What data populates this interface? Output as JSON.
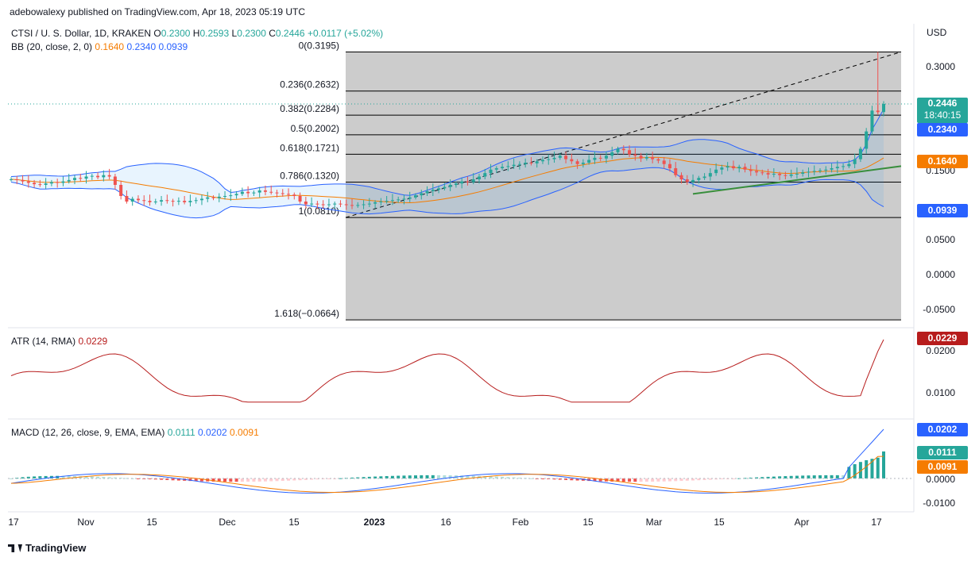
{
  "publisher_line": "adebowalexy published on TradingView.com, Apr 18, 2023 05:19 UTC",
  "footer_brand": "TradingView",
  "header": {
    "symbol": "CTSI / U. S. Dollar, 1D, KRAKEN",
    "o_label": "O",
    "o_value": "0.2300",
    "h_label": "H",
    "h_value": "0.2593",
    "l_label": "L",
    "l_value": "0.2300",
    "c_label": "C",
    "c_value": "0.2446",
    "change": "+0.0117 (+5.02%)",
    "bb_label": "BB (20, close, 2, 0)",
    "bb_basis": "0.1640",
    "bb_upper": "0.2340",
    "bb_lower": "0.0939"
  },
  "price_axis": {
    "currency": "USD",
    "ticks": [
      "0.3000",
      "0.1500",
      "0.0500",
      "0.0000",
      "-0.0500"
    ]
  },
  "price_tags": {
    "last": "0.2446",
    "countdown": "18:40:15",
    "bb_upper": "0.2340",
    "bb_basis": "0.1640",
    "bb_lower": "0.0939"
  },
  "fib_levels": [
    {
      "label": "0(0.3195)",
      "value": 0.3195
    },
    {
      "label": "0.236(0.2632)",
      "value": 0.2632
    },
    {
      "label": "0.382(0.2284)",
      "value": 0.2284
    },
    {
      "label": "0.5(0.2002)",
      "value": 0.2002
    },
    {
      "label": "0.618(0.1721)",
      "value": 0.1721
    },
    {
      "label": "0.786(0.1320)",
      "value": 0.132
    },
    {
      "label": "1(0.0810)",
      "value": 0.081
    },
    {
      "label": "1.618(−0.0664)",
      "value": -0.0664
    }
  ],
  "atr": {
    "label": "ATR (14, RMA)",
    "value": "0.0229",
    "ticks": [
      "0.0200",
      "0.0100"
    ]
  },
  "macd": {
    "label": "MACD (12, 26, close, 9, EMA, EMA)",
    "hist": "0.0111",
    "macd": "0.0202",
    "signal": "0.0091",
    "ticks": [
      "0.0000",
      "-0.0100"
    ]
  },
  "x_axis": [
    "17",
    "Nov",
    "15",
    "Dec",
    "15",
    "2023",
    "16",
    "Feb",
    "15",
    "Mar",
    "15",
    "Apr",
    "17"
  ],
  "colors": {
    "up": "#26a69a",
    "down": "#ef5350",
    "bb_band": "#2962ff",
    "bb_basis": "#f57c00",
    "atr": "#b71c1c",
    "macd": "#2962ff",
    "signal": "#f57c00",
    "fib_bg": "#cccccc",
    "trend": "#388e3c"
  },
  "chart_data": {
    "type": "candlestick",
    "symbol": "CTSI / U. S. Dollar",
    "interval": "1D",
    "x_range": [
      "Oct 17, 2022",
      "Apr 18, 2023"
    ],
    "y_range": [
      -0.07,
      0.33
    ],
    "closes": [
      0.136,
      0.135,
      0.133,
      0.131,
      0.129,
      0.128,
      0.13,
      0.132,
      0.131,
      0.133,
      0.135,
      0.138,
      0.137,
      0.14,
      0.141,
      0.139,
      0.142,
      0.14,
      0.128,
      0.112,
      0.104,
      0.108,
      0.106,
      0.105,
      0.103,
      0.104,
      0.106,
      0.105,
      0.104,
      0.105,
      0.103,
      0.105,
      0.106,
      0.108,
      0.11,
      0.109,
      0.111,
      0.112,
      0.113,
      0.115,
      0.118,
      0.116,
      0.117,
      0.12,
      0.118,
      0.117,
      0.116,
      0.115,
      0.114,
      0.112,
      0.104,
      0.1,
      0.101,
      0.1,
      0.099,
      0.1,
      0.101,
      0.1,
      0.099,
      0.098,
      0.099,
      0.1,
      0.101,
      0.103,
      0.104,
      0.105,
      0.106,
      0.107,
      0.108,
      0.11,
      0.113,
      0.116,
      0.119,
      0.121,
      0.123,
      0.125,
      0.128,
      0.13,
      0.133,
      0.132,
      0.136,
      0.14,
      0.145,
      0.15,
      0.152,
      0.154,
      0.155,
      0.157,
      0.158,
      0.16,
      0.159,
      0.162,
      0.164,
      0.165,
      0.167,
      0.17,
      0.165,
      0.162,
      0.158,
      0.16,
      0.164,
      0.167,
      0.166,
      0.17,
      0.175,
      0.18,
      0.178,
      0.172,
      0.17,
      0.166,
      0.168,
      0.165,
      0.163,
      0.158,
      0.152,
      0.142,
      0.136,
      0.132,
      0.135,
      0.138,
      0.14,
      0.145,
      0.15,
      0.153,
      0.155,
      0.152,
      0.154,
      0.15,
      0.148,
      0.146,
      0.145,
      0.143,
      0.144,
      0.142,
      0.141,
      0.143,
      0.144,
      0.146,
      0.147,
      0.148,
      0.149,
      0.15,
      0.152,
      0.154,
      0.155,
      0.158,
      0.165,
      0.18,
      0.205,
      0.235,
      0.2329,
      0.2446
    ],
    "bb_upper": "0.2340",
    "bb_basis": "0.1640",
    "bb_lower": "0.0939",
    "atr_last": "0.0229",
    "macd_last": "0.0202",
    "signal_last": "0.0091",
    "hist_last": "0.0111"
  }
}
